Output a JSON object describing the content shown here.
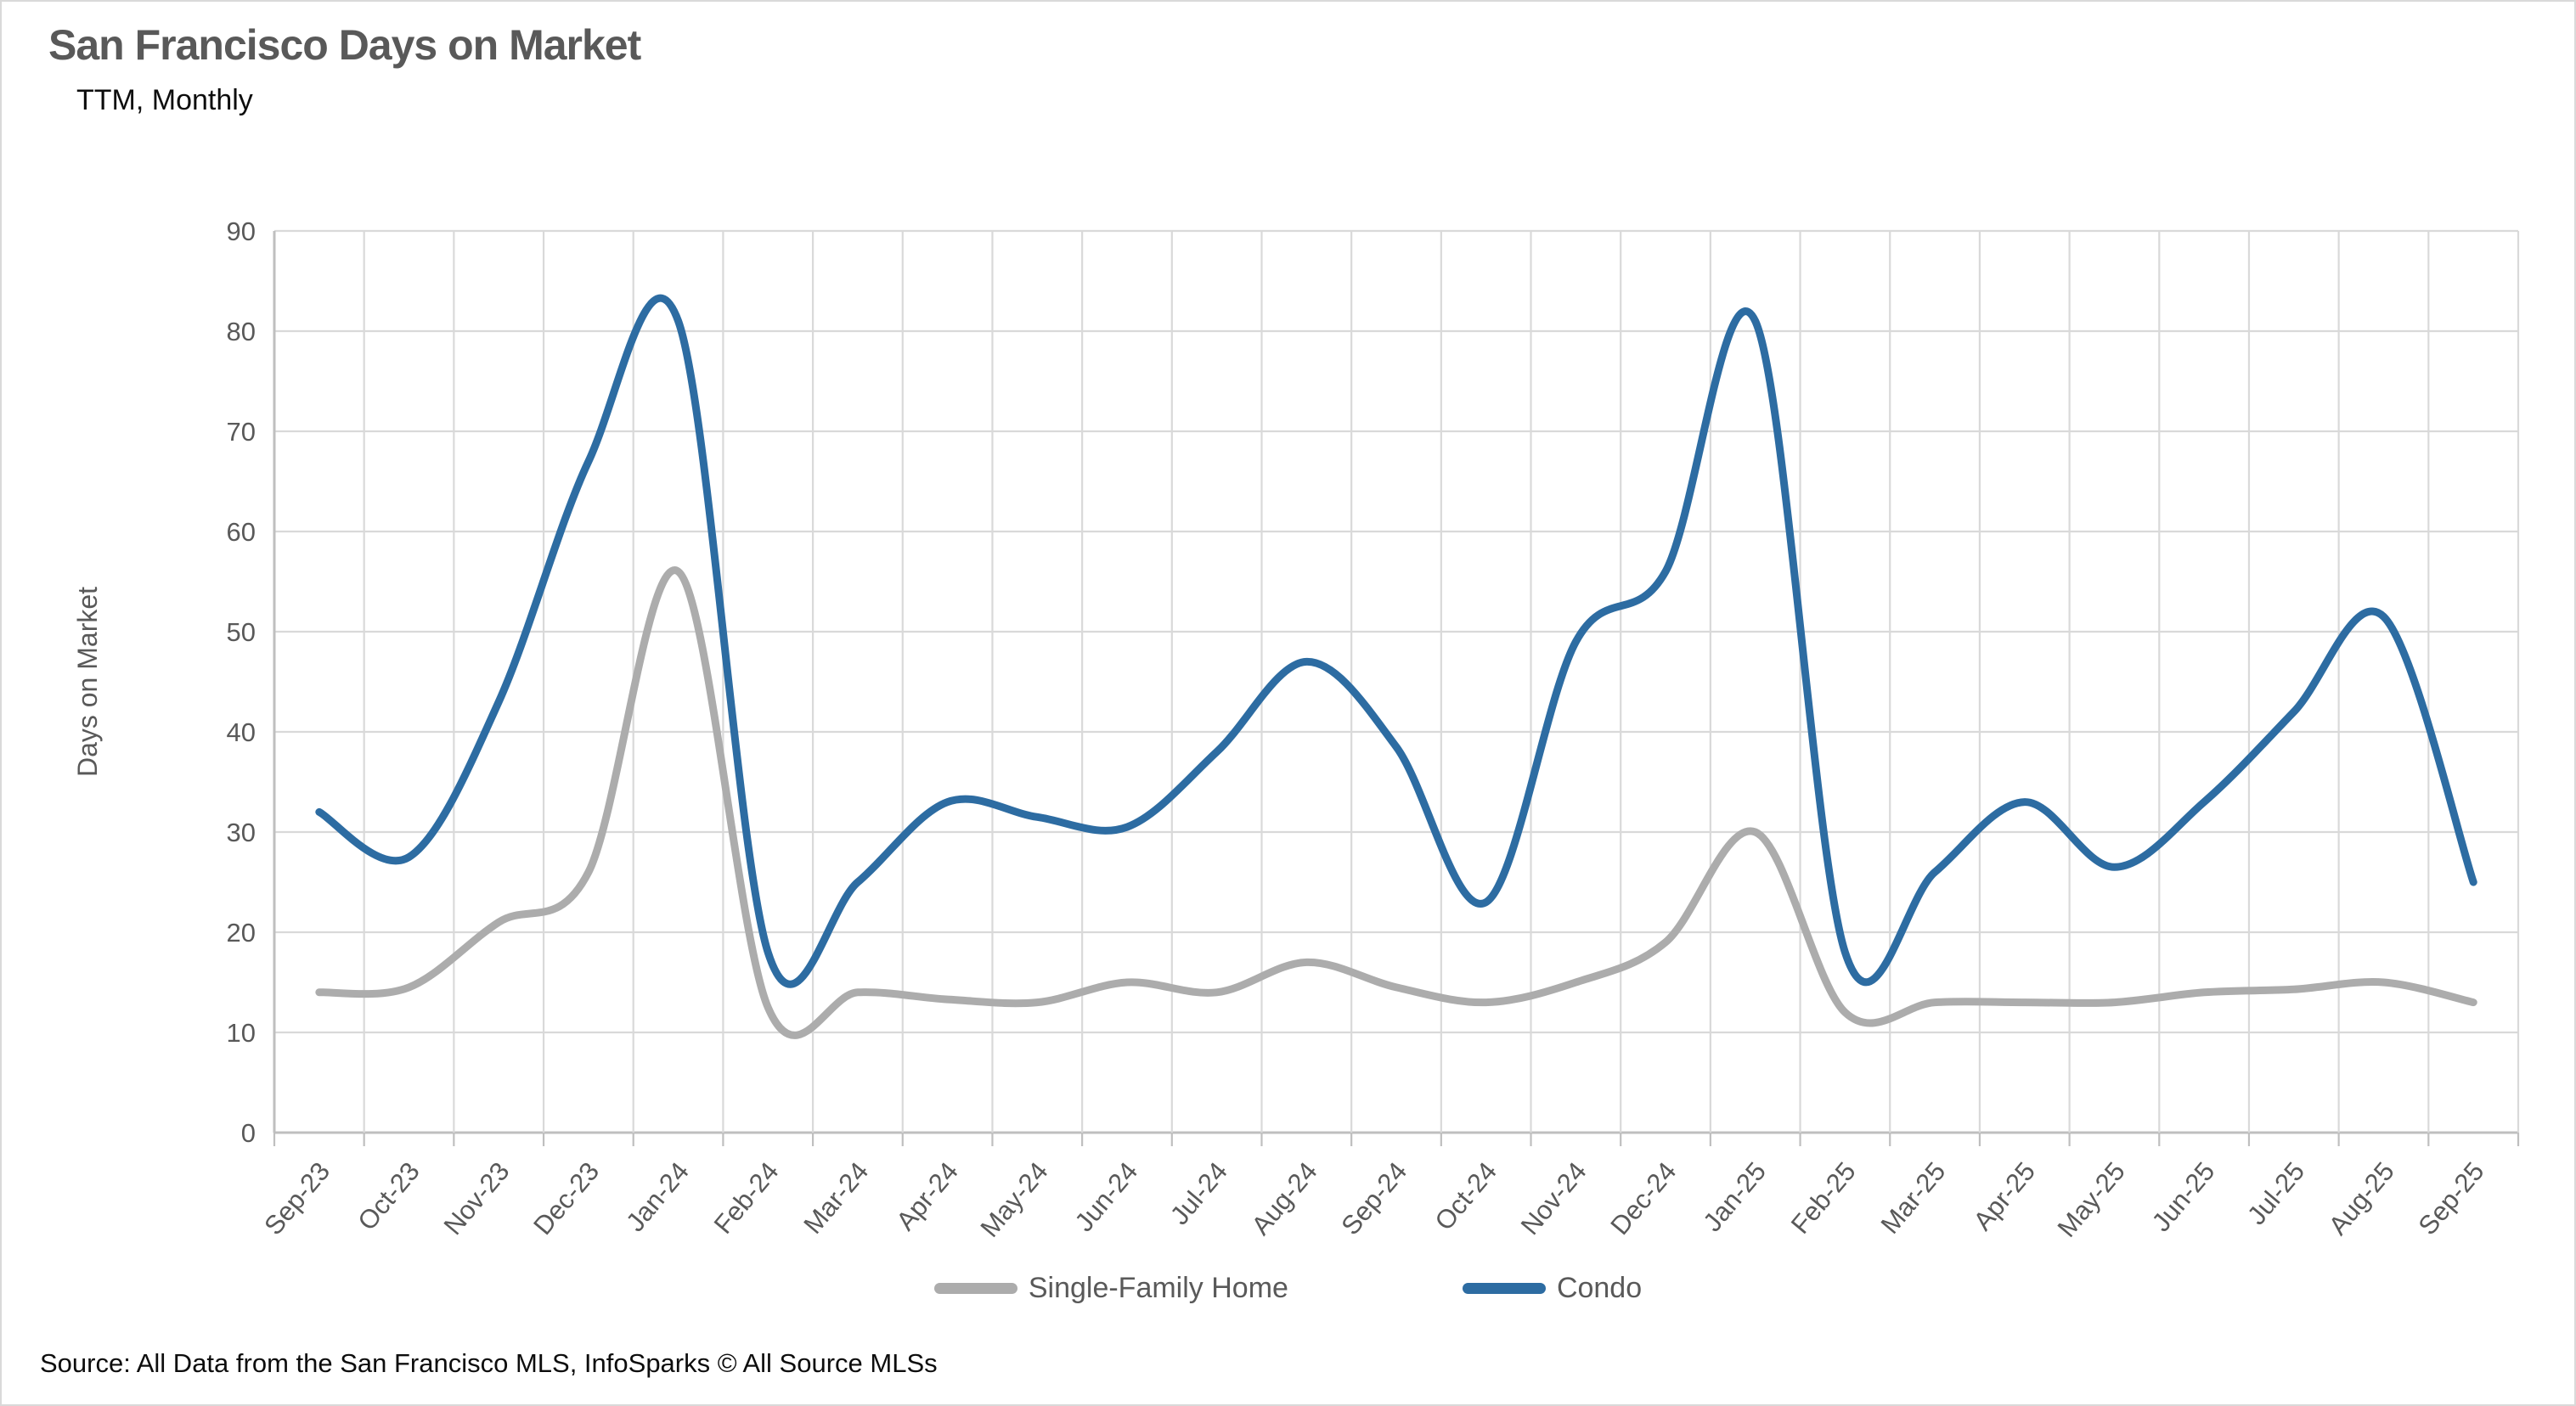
{
  "header": {
    "title": "San Francisco Days on Market",
    "subtitle": "TTM, Monthly"
  },
  "footer": {
    "source": "Source: All Data from the San Francisco MLS, InfoSparks © All Source MLSs"
  },
  "colors": {
    "single_family": "#ACACAC",
    "condo": "#2D6CA2",
    "gridline": "#D9D9D9",
    "axis_line": "#BFBFBF",
    "tick_text": "#595959",
    "title_text": "#595959"
  },
  "chart_data": {
    "type": "line",
    "title": "San Francisco Days on Market",
    "subtitle": "TTM, Monthly",
    "xlabel": "",
    "ylabel": "Days on Market",
    "ylim": [
      0,
      90
    ],
    "ytick_step": 10,
    "grid": true,
    "smooth": true,
    "legend_position": "bottom",
    "categories": [
      "Sep-23",
      "Oct-23",
      "Nov-23",
      "Dec-23",
      "Jan-24",
      "Feb-24",
      "Mar-24",
      "Apr-24",
      "May-24",
      "Jun-24",
      "Jul-24",
      "Aug-24",
      "Sep-24",
      "Oct-24",
      "Nov-24",
      "Dec-24",
      "Jan-25",
      "Feb-25",
      "Mar-25",
      "Apr-25",
      "May-25",
      "Jun-25",
      "Jul-25",
      "Aug-25",
      "Sep-25"
    ],
    "series": [
      {
        "name": "Single-Family Home",
        "color": "#ACACAC",
        "values": [
          14,
          14.5,
          21,
          26,
          56,
          12.5,
          14,
          13.3,
          13,
          15,
          14,
          17,
          14.5,
          13,
          15,
          19,
          30,
          12,
          13,
          13,
          13,
          14,
          14.3,
          15,
          13
        ]
      },
      {
        "name": "Condo",
        "color": "#2D6CA2",
        "values": [
          32,
          27.5,
          43,
          67,
          81,
          18,
          25,
          33,
          31.5,
          30.5,
          38,
          47,
          38.5,
          23,
          49,
          56,
          81,
          18,
          26,
          33,
          26.5,
          33,
          42,
          51.5,
          25
        ]
      }
    ]
  }
}
